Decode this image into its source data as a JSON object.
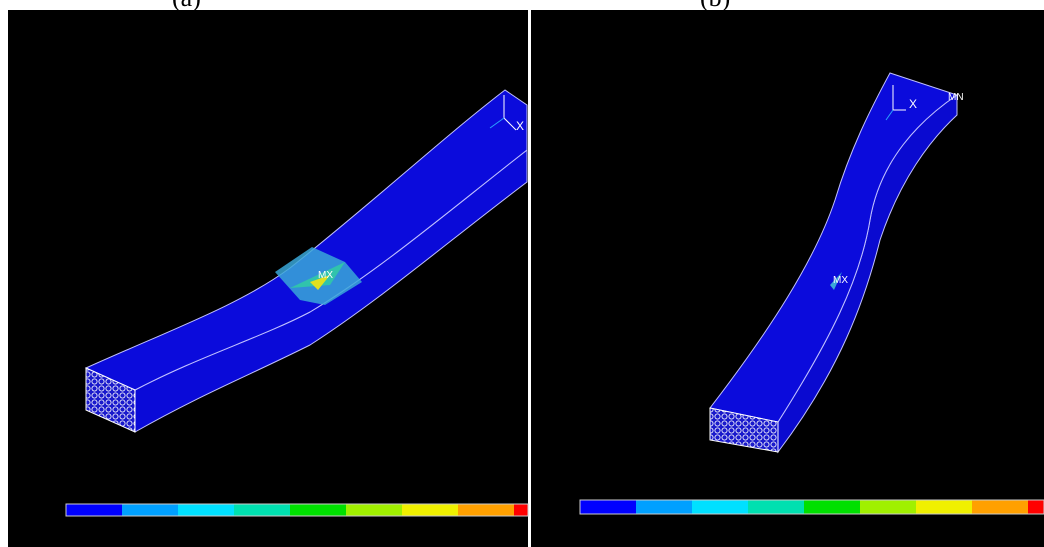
{
  "panels": [
    {
      "caption": "(a)",
      "max_label": "MX",
      "axis_label": "X"
    },
    {
      "caption": "(b)",
      "max_label": "MX",
      "axis_label": "X",
      "min_label": "MN"
    }
  ]
}
